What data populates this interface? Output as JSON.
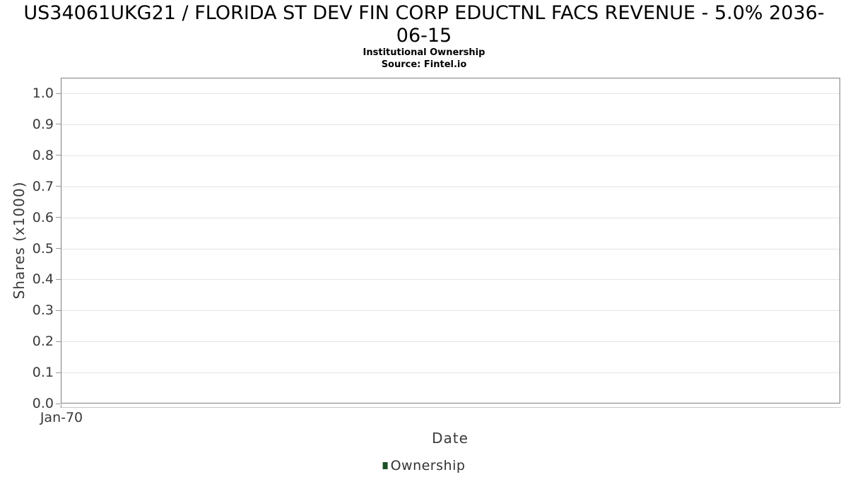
{
  "chart_data": {
    "type": "line",
    "title": "US34061UKG21 / FLORIDA ST DEV FIN CORP EDUCTNL FACS REVENUE - 5.0% 2036-06-15",
    "subtitle": "Institutional Ownership",
    "source": "Source: Fintel.io",
    "xlabel": "Date",
    "ylabel": "Shares (x1000)",
    "x_tick_labels": [
      "Jan-70"
    ],
    "y_tick_labels": [
      "1.0",
      "0.9",
      "0.8",
      "0.7",
      "0.6",
      "0.5",
      "0.4",
      "0.3",
      "0.2",
      "0.1",
      "0.0"
    ],
    "ylim": [
      0.0,
      1.05
    ],
    "xlim_label": "Jan-70",
    "grid": true,
    "legend": {
      "position": "bottom-center",
      "entries": [
        {
          "label": "Ownership",
          "color": "#1d5128"
        }
      ]
    },
    "series": [
      {
        "name": "Ownership",
        "color": "#1d5128",
        "x": [],
        "y": []
      }
    ],
    "colors": {
      "plot_border": "#7f7f7f",
      "gridline": "#e4e4e4",
      "axis_line": "#c9c9c9",
      "tick_mark": "#9a9a9a",
      "label_text": "#3a3a3a",
      "title_text": "#000000"
    }
  }
}
